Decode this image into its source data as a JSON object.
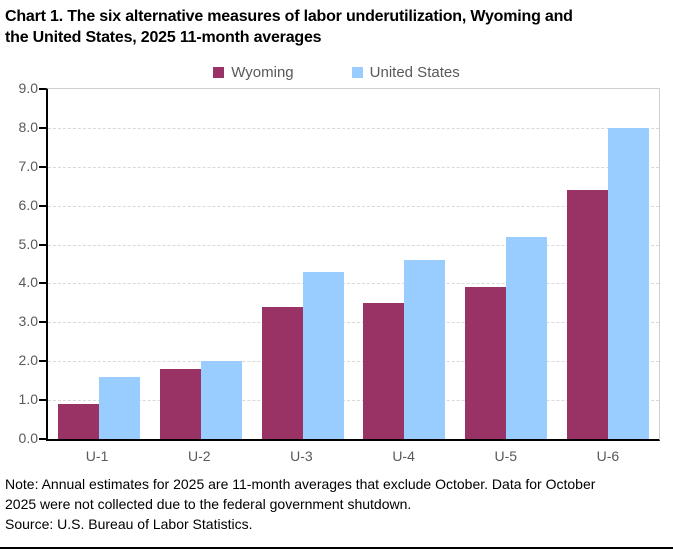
{
  "header": {
    "title_line1": "Chart 1. The six alternative measures of labor underutilization, Wyoming and",
    "title_line2": "the United States, 2025 11-month averages"
  },
  "chart_data": {
    "type": "bar",
    "title": "Chart 1. The six alternative measures of labor underutilization, Wyoming and the United States, 2025 11-month averages",
    "categories": [
      "U-1",
      "U-2",
      "U-3",
      "U-4",
      "U-5",
      "U-6"
    ],
    "series": [
      {
        "name": "Wyoming",
        "color": "#993366",
        "values": [
          0.9,
          1.8,
          3.4,
          3.5,
          3.9,
          6.4
        ]
      },
      {
        "name": "United States",
        "color": "#99CCFF",
        "values": [
          1.6,
          2.0,
          4.3,
          4.6,
          5.2,
          8.0
        ]
      }
    ],
    "xlabel": "",
    "ylabel": "",
    "ylim": [
      0,
      9
    ],
    "ytick_step": 1,
    "ytick_labels": [
      "0.0",
      "1.0",
      "2.0",
      "3.0",
      "4.0",
      "5.0",
      "6.0",
      "7.0",
      "8.0",
      "9.0"
    ],
    "grid": "horizontal-dashed",
    "legend_position": "top-center"
  },
  "colors": {
    "axis_text": "#595959",
    "gridline": "#d9d9d9",
    "plot_border": "#d0d0d0",
    "axis_line": "#000000"
  },
  "footnote": {
    "note_line1": "Note: Annual estimates for 2025 are 11-month averages that exclude October. Data for October",
    "note_line2": "2025 were not collected due to the federal government shutdown.",
    "source": "Source: U.S. Bureau of Labor Statistics."
  }
}
